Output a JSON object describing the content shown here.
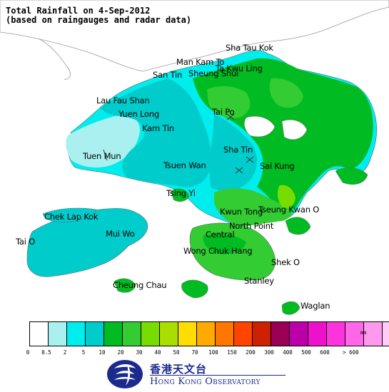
{
  "header": {
    "title_line1": "Total Rainfall on 4-Sep-2012",
    "title_line2": "(based on raingauges and radar data)"
  },
  "places": [
    "Sha Tau Kok",
    "Man Kam To",
    "Ta Kwu Ling",
    "San Tin",
    "Sheung Shui",
    "Lau Fau Shan",
    "Tai Po",
    "Yuen Long",
    "Kam Tin",
    "Sha Tin",
    "Tuen Mun",
    "Tsuen Wan",
    "Sai Kung",
    "Tsing Yi",
    "Chek Lap Kok",
    "Tseung Kwan O",
    "Kwun Tong",
    "North Point",
    "Tai O",
    "Mui Wo",
    "Central",
    "Wong Chuk Hang",
    "Shek O",
    "Cheung Chau",
    "Stanley",
    "Waglan"
  ],
  "legend": {
    "unit": "mm",
    "colors": [
      "#ffffff",
      "#aaf0f0",
      "#00eded",
      "#00cccc",
      "#00bb22",
      "#33cc33",
      "#77dd00",
      "#aadd00",
      "#ffdd00",
      "#ffaa00",
      "#ff7700",
      "#ff4400",
      "#cc2200",
      "#990055",
      "#bb00aa",
      "#ee11cc",
      "#ff33dd",
      "#ff66e8",
      "#ff99ee",
      "#ffccf8"
    ],
    "ticks": [
      "0",
      "0.5",
      "2",
      "5",
      "10",
      "20",
      "30",
      "40",
      "50",
      "70",
      "100",
      "150",
      "200",
      "300",
      "400",
      "500",
      "600",
      "> 600"
    ]
  },
  "logo": {
    "chinese": "香港天文台",
    "english": "Hong Kong Observatory"
  }
}
